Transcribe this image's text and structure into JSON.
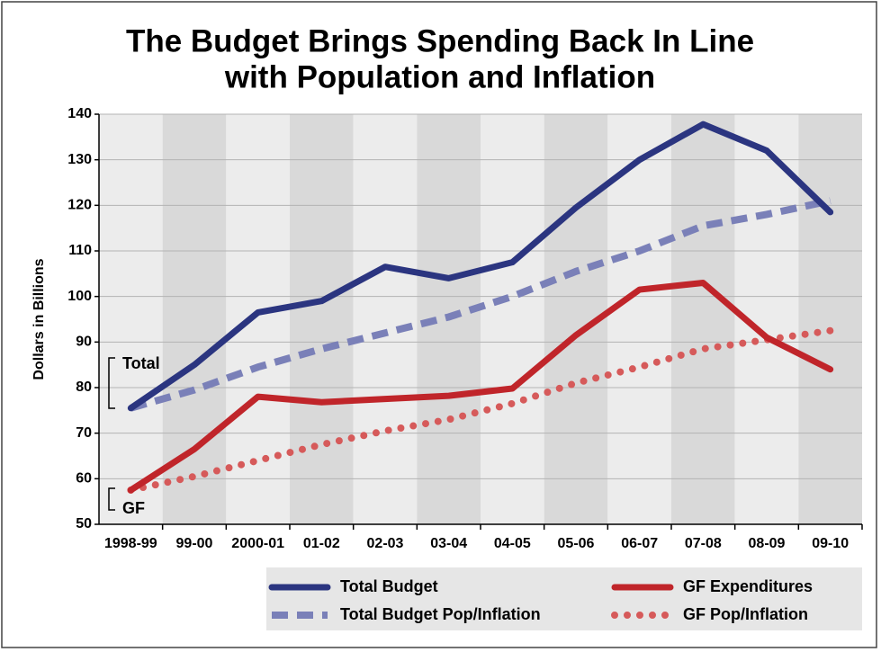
{
  "chart_data": {
    "type": "line",
    "title": [
      "The Budget Brings Spending Back In Line",
      "with Population and Inflation"
    ],
    "y_label": "Dollars in Billions",
    "annotations": [
      "Total",
      "GF"
    ],
    "categories": [
      "1998-99",
      "99-00",
      "2000-01",
      "01-02",
      "02-03",
      "03-04",
      "04-05",
      "05-06",
      "06-07",
      "07-08",
      "08-09",
      "09-10"
    ],
    "ylim": [
      50,
      140
    ],
    "yticks": [
      50,
      60,
      70,
      80,
      90,
      100,
      110,
      120,
      130,
      140
    ],
    "grid": true,
    "series": [
      {
        "name": "Total Budget",
        "color": "#2b3580",
        "style": "solid",
        "values": [
          75.5,
          85,
          96.5,
          99,
          106.5,
          104,
          107.5,
          119.5,
          130,
          137.8,
          132,
          118.5
        ]
      },
      {
        "name": "Total Budget Pop/Inflation",
        "color": "#7a80b8",
        "style": "dashed",
        "values": [
          75.5,
          79.5,
          84.5,
          88.5,
          92,
          95.5,
          100,
          105.5,
          110,
          115.5,
          118,
          121
        ]
      },
      {
        "name": "GF Expenditures",
        "color": "#c0252a",
        "style": "solid",
        "values": [
          57.5,
          66.5,
          78,
          76.8,
          77.5,
          78.2,
          79.8,
          91.5,
          101.5,
          103,
          91,
          84
        ]
      },
      {
        "name": "GF Pop/Inflation",
        "color": "#d65a5a",
        "style": "dotted",
        "values": [
          57.5,
          60.5,
          64,
          67.5,
          70.5,
          73,
          76.5,
          81,
          84.5,
          88.5,
          90.5,
          92.5
        ]
      }
    ]
  }
}
